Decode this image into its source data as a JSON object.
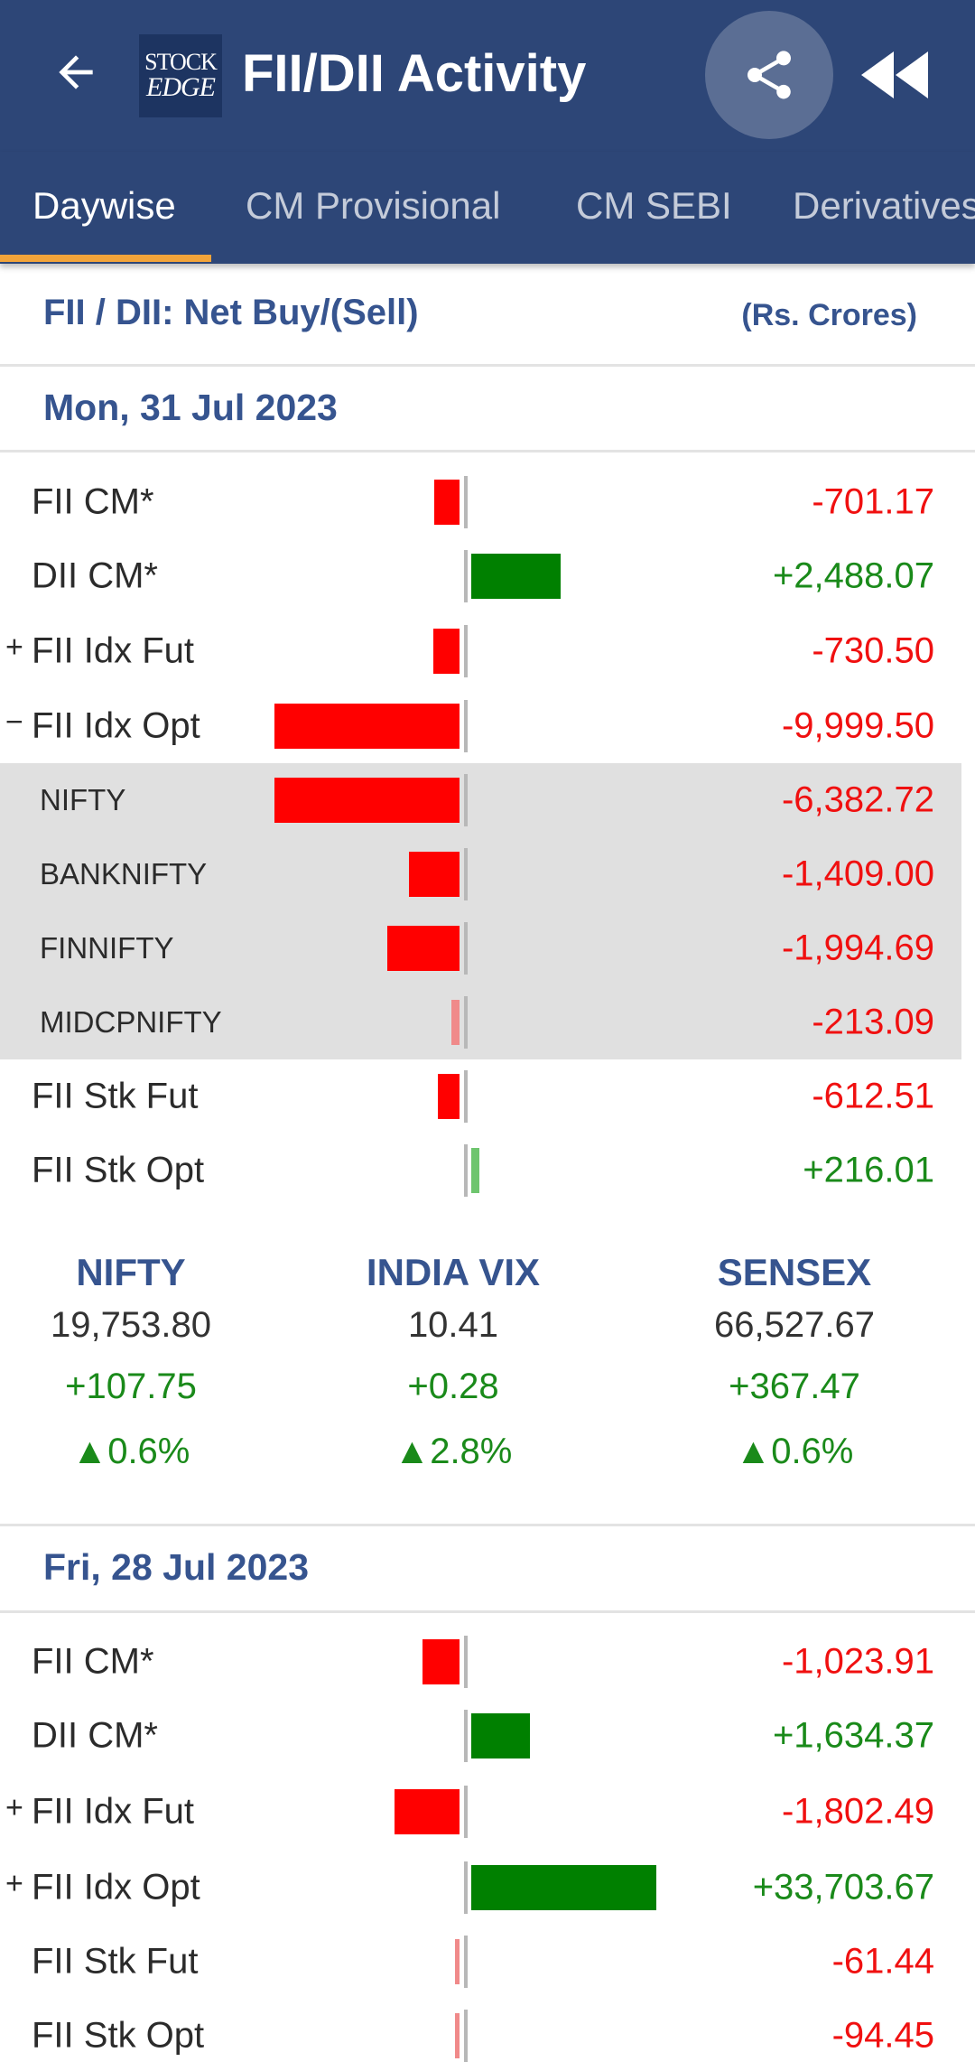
{
  "appbar": {
    "title": "FII/DII Activity",
    "logo_line1": "STOCK",
    "logo_line2": "EDGE"
  },
  "tabs": [
    {
      "label": "Daywise",
      "active": true
    },
    {
      "label": "CM Provisional",
      "active": false
    },
    {
      "label": "CM SEBI",
      "active": false
    },
    {
      "label": "Derivatives",
      "active": false
    }
  ],
  "summary": {
    "title": "FII / DII: Net Buy/(Sell)",
    "units": "(Rs. Crores)"
  },
  "days": [
    {
      "date": "Mon, 31 Jul 2023",
      "rows": [
        {
          "label": "FII CM*",
          "value": "-701.17",
          "amount": -701.17,
          "expander": ""
        },
        {
          "label": "DII CM*",
          "value": "+2,488.07",
          "amount": 2488.07,
          "expander": ""
        },
        {
          "label": "FII Idx Fut",
          "value": "-730.50",
          "amount": -730.5,
          "expander": "+"
        },
        {
          "label": "FII Idx Opt",
          "value": "-9,999.50",
          "amount": -9999.5,
          "expander": "−"
        },
        {
          "label": "NIFTY",
          "value": "-6,382.72",
          "amount": -6382.72,
          "sub": true
        },
        {
          "label": "BANKNIFTY",
          "value": "-1,409.00",
          "amount": -1409.0,
          "sub": true
        },
        {
          "label": "FINNIFTY",
          "value": "-1,994.69",
          "amount": -1994.69,
          "sub": true
        },
        {
          "label": "MIDCPNIFTY",
          "value": "-213.09",
          "amount": -213.09,
          "sub": true
        },
        {
          "label": "FII Stk Fut",
          "value": "-612.51",
          "amount": -612.51,
          "expander": ""
        },
        {
          "label": "FII Stk Opt",
          "value": "+216.01",
          "amount": 216.01,
          "expander": ""
        }
      ]
    },
    {
      "date": "Fri, 28 Jul 2023",
      "rows": [
        {
          "label": "FII CM*",
          "value": "-1,023.91",
          "amount": -1023.91,
          "expander": ""
        },
        {
          "label": "DII CM*",
          "value": "+1,634.37",
          "amount": 1634.37,
          "expander": ""
        },
        {
          "label": "FII Idx Fut",
          "value": "-1,802.49",
          "amount": -1802.49,
          "expander": "+"
        },
        {
          "label": "FII Idx Opt",
          "value": "+33,703.67",
          "amount": 33703.67,
          "expander": "+"
        },
        {
          "label": "FII Stk Fut",
          "value": "-61.44",
          "amount": -61.44,
          "expander": ""
        },
        {
          "label": "FII Stk Opt",
          "value": "-94.45",
          "amount": -94.45,
          "expander": ""
        }
      ]
    }
  ],
  "indices": [
    {
      "name": "NIFTY",
      "value": "19,753.80",
      "change": "+107.75",
      "pct": "▲0.6%"
    },
    {
      "name": "INDIA VIX",
      "value": "10.41",
      "change": "+0.28",
      "pct": "▲2.8%"
    },
    {
      "name": "SENSEX",
      "value": "66,527.67",
      "change": "+367.47",
      "pct": "▲0.6%"
    }
  ],
  "colors": {
    "appbar": "#2d4677",
    "accent": "#f2a43a",
    "negative": "#ff0000",
    "positive": "#008000",
    "heading": "#36548f"
  }
}
